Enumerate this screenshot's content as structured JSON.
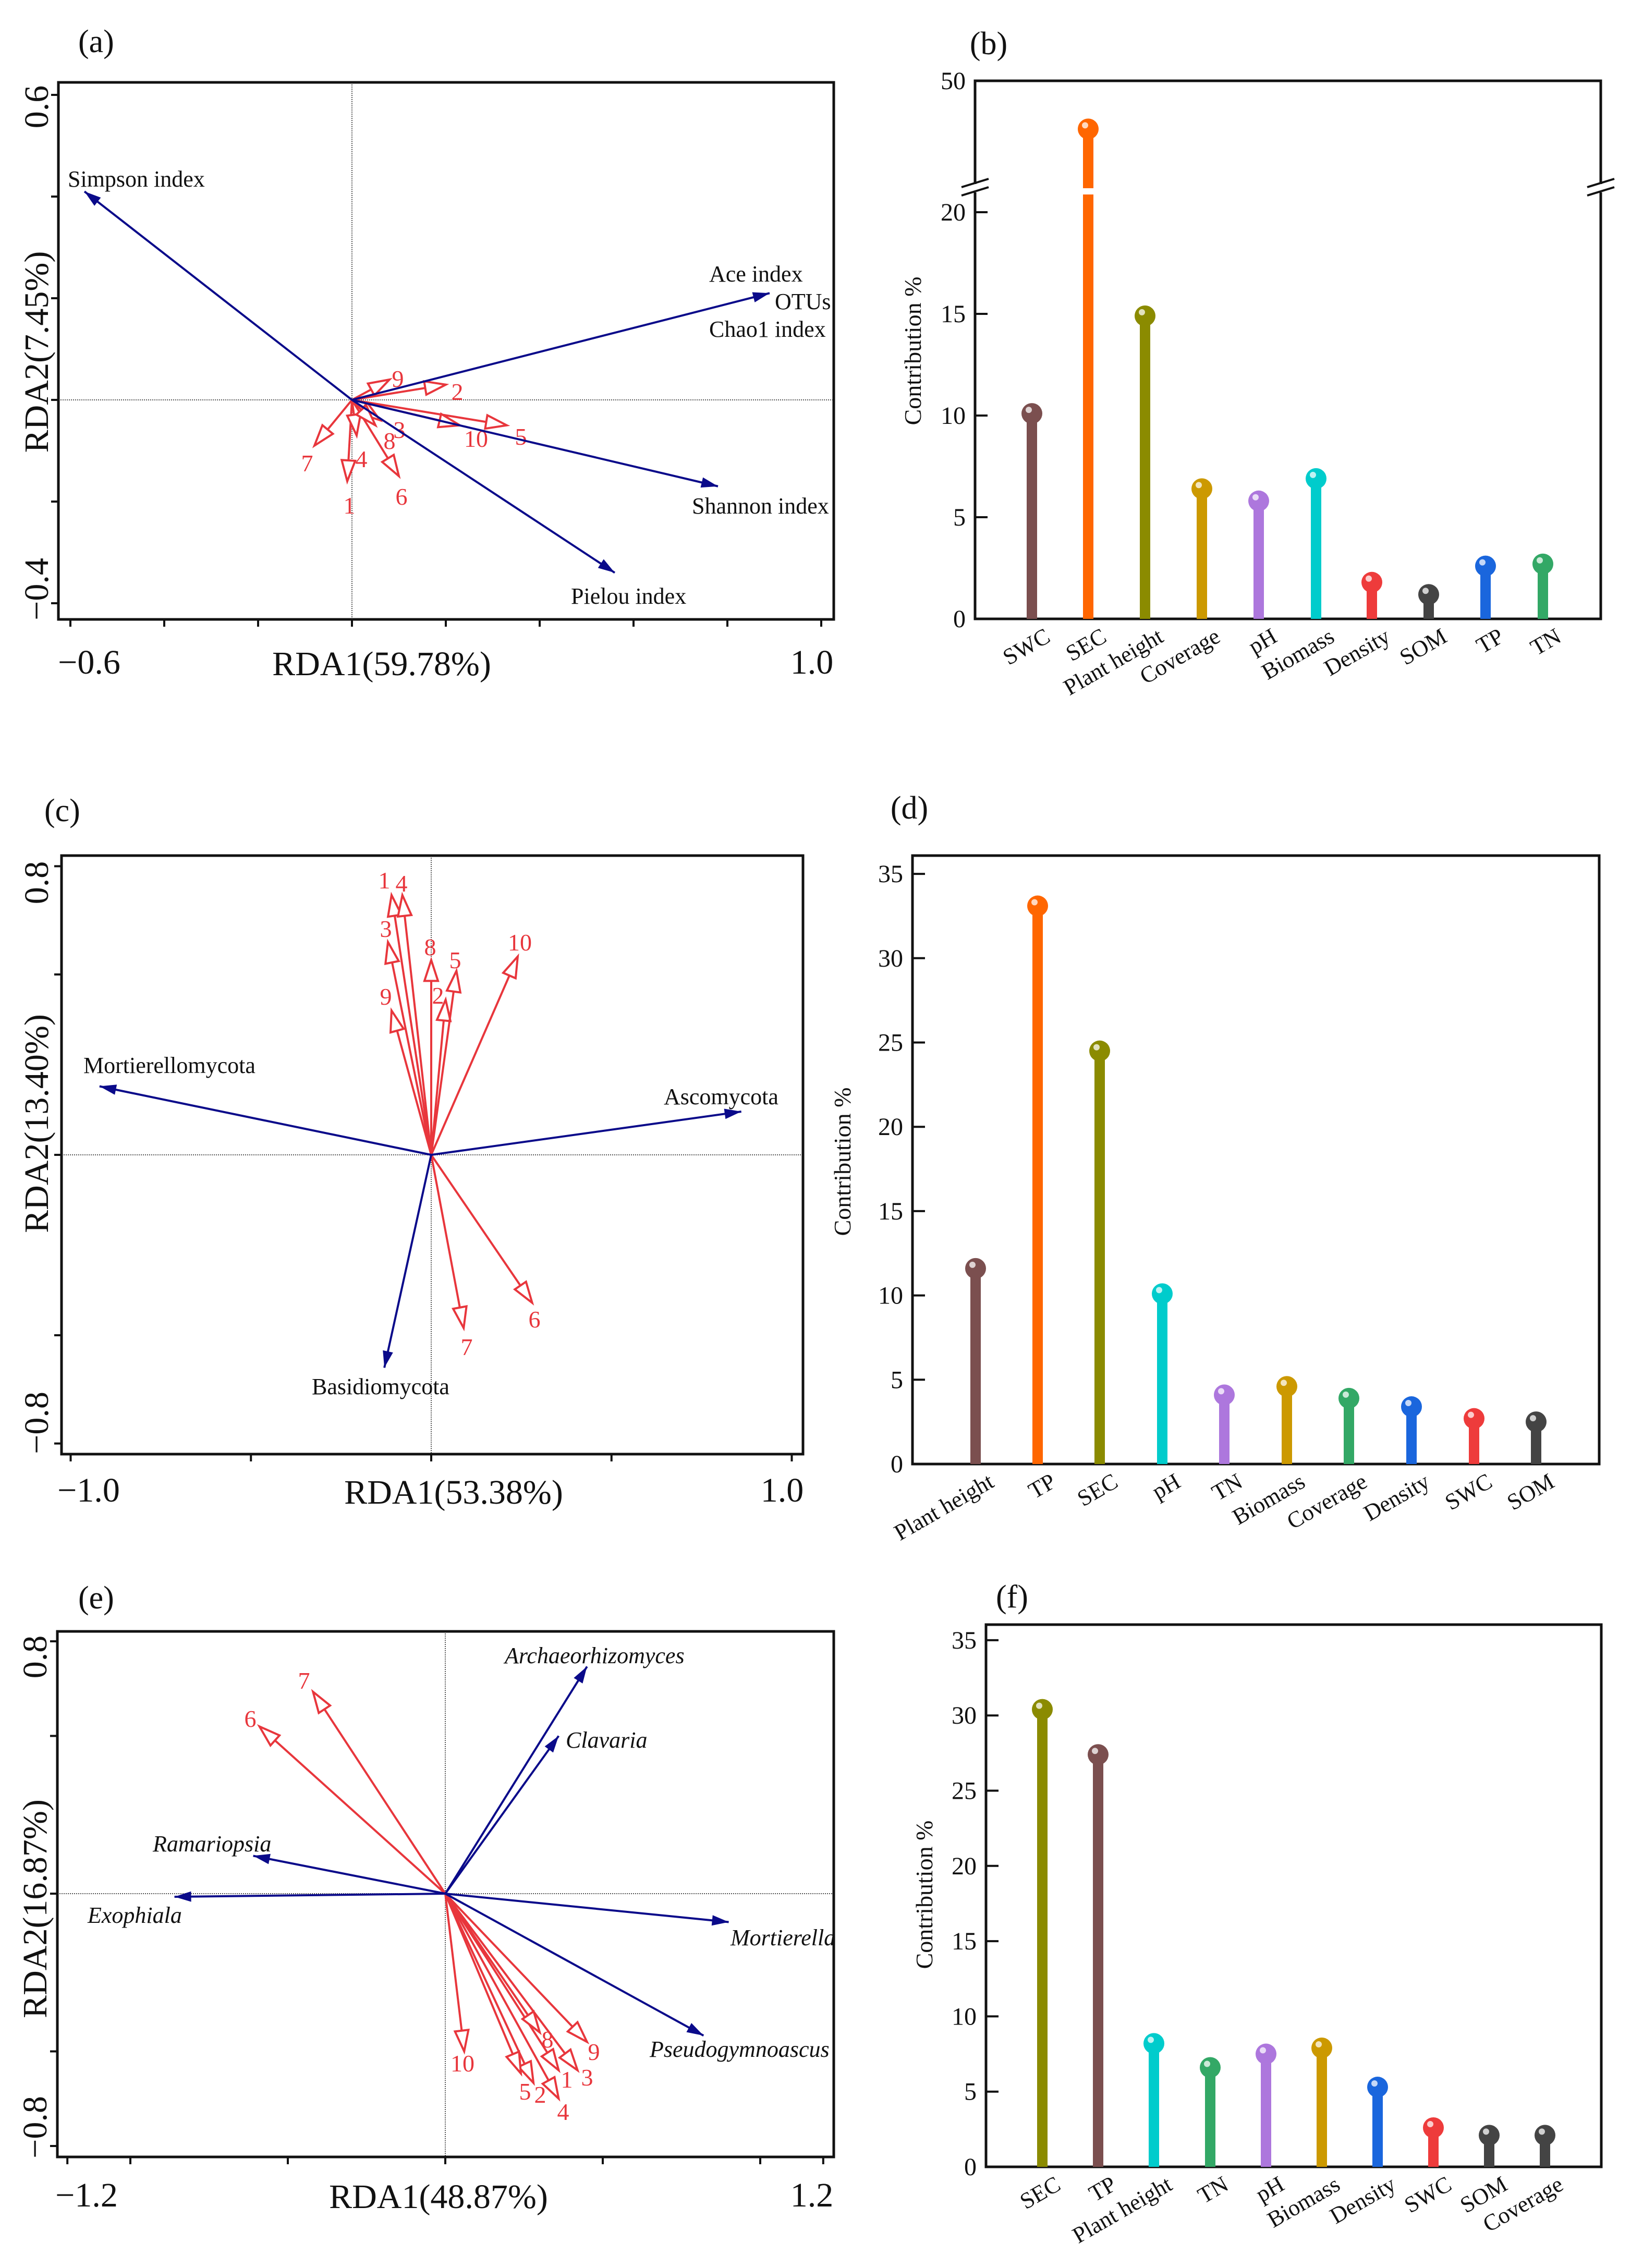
{
  "colors": {
    "response_vector": "#0a0a8a",
    "sample_vector": "#e8363c",
    "axis": "#111111"
  },
  "chart_data": [
    {
      "panel": "(a)",
      "type": "biplot",
      "xlabel": "RDA1(59.78%)",
      "ylabel": "RDA2(7.45%)",
      "xlim": [
        -0.6,
        1.0
      ],
      "ylim": [
        -0.4,
        0.6
      ],
      "x_tick_labels": [
        "−0.6",
        "1.0"
      ],
      "y_tick_labels": [
        "0.6",
        "−0.4"
      ],
      "response_vectors": [
        {
          "labels": [
            "Simpson index"
          ],
          "x": -0.57,
          "y": 0.41
        },
        {
          "labels": [
            "Ace index",
            "OTUs",
            "Chao1 index"
          ],
          "x": 0.89,
          "y": 0.21
        },
        {
          "labels": [
            "Shannon index"
          ],
          "x": 0.78,
          "y": -0.17
        },
        {
          "labels": [
            "Pielou index"
          ],
          "x": 0.56,
          "y": -0.34
        }
      ],
      "sample_vectors": [
        {
          "label": "1",
          "x": -0.01,
          "y": -0.16
        },
        {
          "label": "2",
          "x": 0.2,
          "y": 0.03
        },
        {
          "label": "3",
          "x": 0.06,
          "y": -0.04
        },
        {
          "label": "4",
          "x": 0.01,
          "y": -0.07
        },
        {
          "label": "5",
          "x": 0.33,
          "y": -0.05
        },
        {
          "label": "6",
          "x": 0.1,
          "y": -0.15
        },
        {
          "label": "7",
          "x": -0.08,
          "y": -0.09
        },
        {
          "label": "8",
          "x": 0.05,
          "y": -0.05
        },
        {
          "label": "9",
          "x": 0.08,
          "y": 0.04
        },
        {
          "label": "10",
          "x": 0.23,
          "y": -0.05
        }
      ]
    },
    {
      "panel": "(b)",
      "type": "bar",
      "ylabel": "Contribution %",
      "ylim": [
        0,
        50
      ],
      "axis_break": [
        21,
        50
      ],
      "y_tick_labels": [
        "0",
        "5",
        "10",
        "15",
        "20",
        "50"
      ],
      "categories": [
        "SWC",
        "SEC",
        "Plant height",
        "Coverage",
        "pH",
        "Biomass",
        "Density",
        "SOM",
        "TP",
        "TN"
      ],
      "values": [
        10.1,
        37.0,
        14.9,
        6.4,
        5.8,
        6.9,
        1.8,
        1.2,
        2.6,
        2.7
      ],
      "colors": [
        "#7b4f4f",
        "#ff6600",
        "#8b8b00",
        "#cc9900",
        "#ad77dd",
        "#00cccc",
        "#ee3b3b",
        "#444444",
        "#1a66dd",
        "#33a866"
      ]
    },
    {
      "panel": "(c)",
      "type": "biplot",
      "xlabel": "RDA1(53.38%)",
      "ylabel": "RDA2(13.40%)",
      "xlim": [
        -1.0,
        1.0
      ],
      "ylim": [
        -0.8,
        0.8
      ],
      "x_tick_labels": [
        "−1.0",
        "1.0"
      ],
      "y_tick_labels": [
        "0.8",
        "−0.8"
      ],
      "response_vectors": [
        {
          "labels": [
            "Mortierellomycota"
          ],
          "x": -0.92,
          "y": 0.19
        },
        {
          "labels": [
            "Ascomycota"
          ],
          "x": 0.86,
          "y": 0.12
        },
        {
          "labels": [
            "Basidiomycota"
          ],
          "x": -0.13,
          "y": -0.59
        }
      ],
      "sample_vectors": [
        {
          "label": "1",
          "x": -0.11,
          "y": 0.72
        },
        {
          "label": "2",
          "x": 0.04,
          "y": 0.43
        },
        {
          "label": "3",
          "x": -0.12,
          "y": 0.59
        },
        {
          "label": "4",
          "x": -0.08,
          "y": 0.72
        },
        {
          "label": "5",
          "x": 0.07,
          "y": 0.51
        },
        {
          "label": "6",
          "x": 0.28,
          "y": -0.41
        },
        {
          "label": "7",
          "x": 0.09,
          "y": -0.48
        },
        {
          "label": "8",
          "x": 0.0,
          "y": 0.54
        },
        {
          "label": "9",
          "x": -0.11,
          "y": 0.4
        },
        {
          "label": "10",
          "x": 0.24,
          "y": 0.55
        }
      ]
    },
    {
      "panel": "(d)",
      "type": "bar",
      "ylabel": "Contribution %",
      "ylim": [
        0,
        35
      ],
      "y_tick_labels": [
        "0",
        "5",
        "10",
        "15",
        "20",
        "25",
        "30",
        "35"
      ],
      "categories": [
        "Plant  height",
        "TP",
        "SEC",
        "pH",
        "TN",
        "Biomass",
        "Coverage",
        "Density",
        "SWC",
        "SOM"
      ],
      "values": [
        11.6,
        33.1,
        24.5,
        10.1,
        4.1,
        4.6,
        3.9,
        3.4,
        2.7,
        2.5
      ],
      "colors": [
        "#7b4f4f",
        "#ff6600",
        "#8b8b00",
        "#00cccc",
        "#ad77dd",
        "#cc9900",
        "#33a866",
        "#1a66dd",
        "#ee3b3b",
        "#444444"
      ]
    },
    {
      "panel": "(e)",
      "type": "biplot",
      "xlabel": "RDA1(48.87%)",
      "ylabel": "RDA2(16.87%)",
      "xlim": [
        -1.2,
        1.2
      ],
      "ylim": [
        -0.8,
        0.8
      ],
      "x_tick_labels": [
        "−1.2",
        "1.2"
      ],
      "y_tick_labels": [
        "0.8",
        "−0.8"
      ],
      "response_vectors": [
        {
          "labels": [
            "Archaeorhizomyces"
          ],
          "x": 0.45,
          "y": 0.72
        },
        {
          "labels": [
            "Clavaria"
          ],
          "x": 0.36,
          "y": 0.5
        },
        {
          "labels": [
            "Ramariopsia"
          ],
          "x": -0.61,
          "y": 0.12
        },
        {
          "labels": [
            "Exophiala"
          ],
          "x": -0.86,
          "y": -0.01
        },
        {
          "labels": [
            "Mortierella"
          ],
          "x": 0.9,
          "y": -0.09
        },
        {
          "labels": [
            "Pseudogymnoascus"
          ],
          "x": 0.82,
          "y": -0.45
        }
      ],
      "sample_vectors": [
        {
          "label": "1",
          "x": 0.36,
          "y": -0.56
        },
        {
          "label": "2",
          "x": 0.28,
          "y": -0.6
        },
        {
          "label": "3",
          "x": 0.42,
          "y": -0.56
        },
        {
          "label": "4",
          "x": 0.36,
          "y": -0.65
        },
        {
          "label": "5",
          "x": 0.24,
          "y": -0.57
        },
        {
          "label": "6",
          "x": -0.59,
          "y": 0.53
        },
        {
          "label": "7",
          "x": -0.42,
          "y": 0.64
        },
        {
          "label": "8",
          "x": 0.3,
          "y": -0.44
        },
        {
          "label": "9",
          "x": 0.45,
          "y": -0.47
        },
        {
          "label": "10",
          "x": 0.06,
          "y": -0.5
        }
      ]
    },
    {
      "panel": "(f)",
      "type": "bar",
      "ylabel": "Contribution %",
      "ylim": [
        0,
        35
      ],
      "y_tick_labels": [
        "0",
        "5",
        "10",
        "15",
        "20",
        "25",
        "30",
        "35"
      ],
      "categories": [
        "SEC",
        "TP",
        "Plant height",
        "TN",
        "pH",
        "Biomass",
        "Density",
        "SWC",
        "SOM",
        "Coverage"
      ],
      "values": [
        30.4,
        27.4,
        8.2,
        6.6,
        7.5,
        7.9,
        5.3,
        2.6,
        2.1,
        2.1
      ],
      "colors": [
        "#8b8b00",
        "#7b4f4f",
        "#00cccc",
        "#33a866",
        "#ad77dd",
        "#cc9900",
        "#1a66dd",
        "#ee3b3b",
        "#444444",
        "#444444"
      ]
    }
  ]
}
